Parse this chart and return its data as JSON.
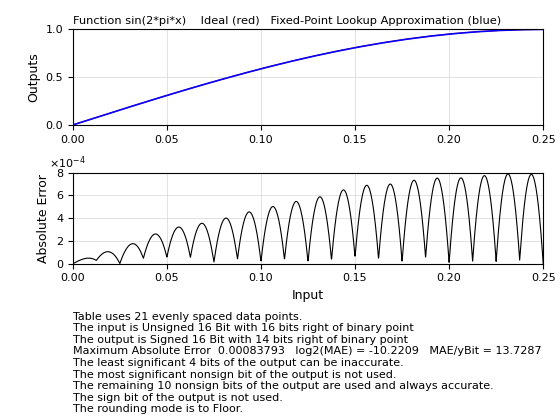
{
  "title": "Function sin(2*pi*x)    Ideal (red)   Fixed-Point Lookup Approximation (blue)",
  "ylabel1": "Outputs",
  "ylabel2": "Absolute Error",
  "xlabel2": "Input",
  "xlim": [
    0,
    0.25
  ],
  "ylim1": [
    0,
    1
  ],
  "ylim2": [
    0,
    0.0008
  ],
  "ideal_color": "red",
  "approx_color": "blue",
  "error_color": "black",
  "n_points": 21,
  "n_dense": 2000,
  "text_lines": [
    "Table uses 21 evenly spaced data points.",
    "The input is Unsigned 16 Bit with 16 bits right of binary point",
    "The output is Signed 16 Bit with 14 bits right of binary point",
    "Maximum Absolute Error  0.00083793   log2(MAE) = -10.2209   MAE/yBit = 13.7287",
    "The least significant 4 bits of the output can be inaccurate.",
    "The most significant nonsign bit of the output is not used.",
    "The remaining 10 nonsign bits of the output are used and always accurate.",
    "The sign bit of the output is not used.",
    "The rounding mode is to Floor."
  ],
  "text_fontsize": 8.0,
  "background_color": "#ffffff"
}
